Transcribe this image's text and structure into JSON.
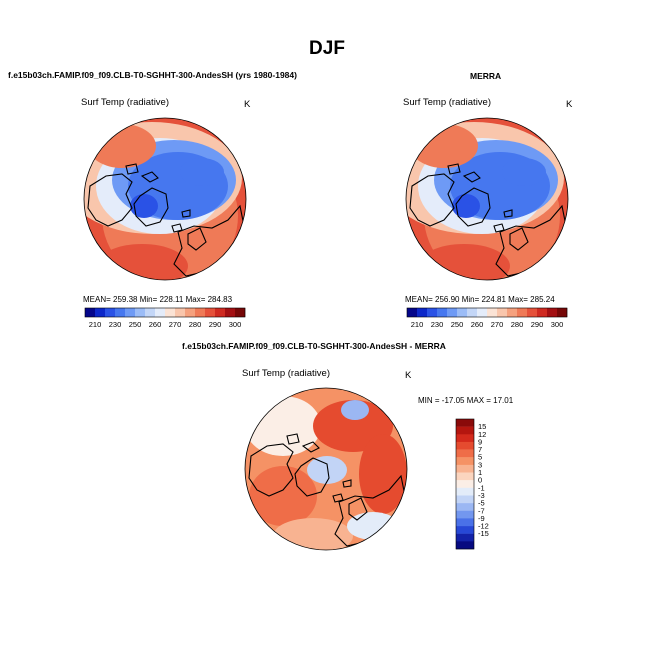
{
  "title": "DJF",
  "panels": [
    {
      "id": "model",
      "header": "f.e15b03ch.FAMIP.f09_f09.CLB-T0-SGHHT-300-AndesSH (yrs 1980-1984)",
      "variable": "Surf Temp (radiative)",
      "units": "K",
      "stats": "MEAN= 259.38   Min= 228.11   Max= 284.83"
    },
    {
      "id": "obs",
      "header": "MERRA",
      "variable": "Surf Temp (radiative)",
      "units": "K",
      "stats": "MEAN= 256.90   Min= 224.81   Max= 285.24"
    },
    {
      "id": "diff",
      "header": "f.e15b03ch.FAMIP.f09_f09.CLB-T0-SGHHT-300-AndesSH - MERRA",
      "variable": "Surf Temp (radiative)",
      "units": "K",
      "stats": "MIN = -17.05  MAX =  17.01"
    }
  ],
  "chart_data": [
    {
      "type": "heatmap",
      "projection": "north polar stereographic",
      "panel": "model",
      "colorbar": {
        "orientation": "horizontal",
        "tick_labels": [
          "210",
          "230",
          "250",
          "260",
          "270",
          "280",
          "290",
          "300"
        ],
        "colors": [
          "#04068a",
          "#0c27c9",
          "#2a52e6",
          "#4677ef",
          "#6e9af5",
          "#9bbcf7",
          "#c3d6f7",
          "#e4ecfa",
          "#fbe3d5",
          "#f9c6ac",
          "#f5a17e",
          "#ef7a57",
          "#e5513a",
          "#cf2a21",
          "#a30f12",
          "#760707"
        ]
      },
      "stats": {
        "mean": 259.38,
        "min": 228.11,
        "max": 284.83
      }
    },
    {
      "type": "heatmap",
      "projection": "north polar stereographic",
      "panel": "obs",
      "colorbar": {
        "orientation": "horizontal",
        "tick_labels": [
          "210",
          "230",
          "250",
          "260",
          "270",
          "280",
          "290",
          "300"
        ],
        "colors": [
          "#04068a",
          "#0c27c9",
          "#2a52e6",
          "#4677ef",
          "#6e9af5",
          "#9bbcf7",
          "#c3d6f7",
          "#e4ecfa",
          "#fbe3d5",
          "#f9c6ac",
          "#f5a17e",
          "#ef7a57",
          "#e5513a",
          "#cf2a21",
          "#a30f12",
          "#760707"
        ]
      },
      "stats": {
        "mean": 256.9,
        "min": 224.81,
        "max": 285.24
      }
    },
    {
      "type": "heatmap",
      "projection": "north polar stereographic",
      "panel": "diff",
      "colorbar": {
        "orientation": "vertical",
        "tick_labels": [
          "15",
          "12",
          "9",
          "7",
          "5",
          "3",
          "1",
          "0",
          "-1",
          "-3",
          "-5",
          "-7",
          "-9",
          "-12",
          "-15"
        ],
        "colors": [
          "#8a0a0a",
          "#b5160f",
          "#d42a1c",
          "#e54b2f",
          "#ef6d48",
          "#f59265",
          "#f8b391",
          "#fbd5bf",
          "#fbeee6",
          "#e3ecf9",
          "#c2d4f6",
          "#9bb7f3",
          "#7397ef",
          "#4a71e8",
          "#2748d6",
          "#1322a8",
          "#070a80"
        ]
      },
      "stats": {
        "min": -17.05,
        "max": 17.01
      }
    }
  ],
  "colors": {
    "land_outline": "#000000",
    "background": "#ffffff"
  }
}
